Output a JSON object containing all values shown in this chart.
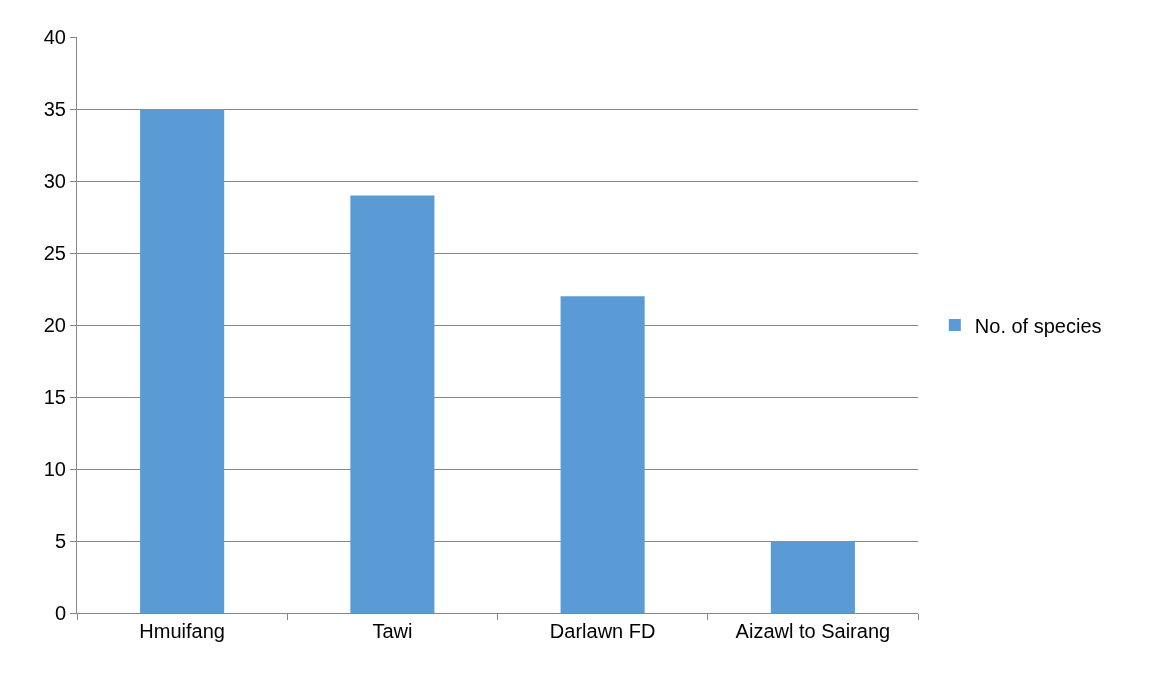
{
  "chart_data": {
    "type": "bar",
    "categories": [
      "Hmuifang",
      "Tawi",
      "Darlawn FD",
      "Aizawl to Sairang"
    ],
    "series": [
      {
        "name": "No. of species",
        "color": "#5b9bd5",
        "values": [
          35,
          29,
          22,
          5
        ]
      }
    ],
    "ylim": [
      0,
      40
    ],
    "yticks": [
      0,
      5,
      10,
      15,
      20,
      25,
      30,
      35,
      40
    ],
    "grid": "y",
    "legend": "right"
  }
}
